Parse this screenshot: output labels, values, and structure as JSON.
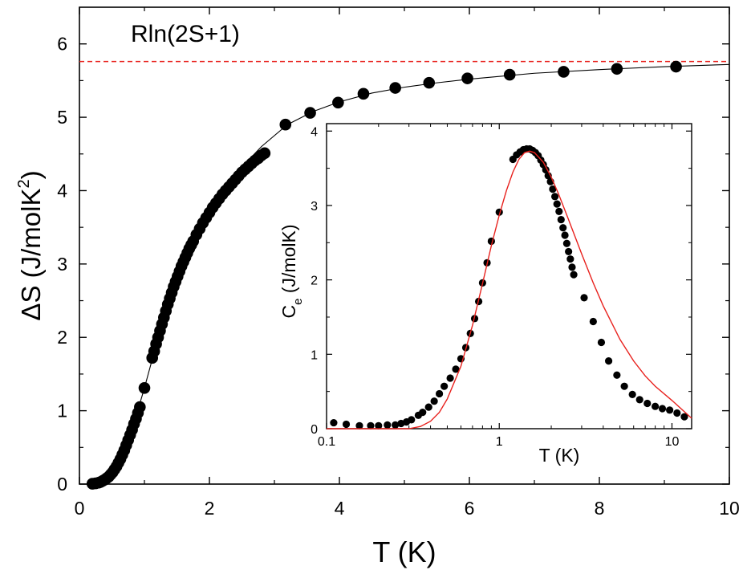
{
  "chart_data": [
    {
      "type": "scatter",
      "xlabel": "T (K)",
      "ylabel_main": "ΔS (J/molK",
      "ylabel_sup": "2",
      "ylabel_close": ")",
      "xlim": [
        0,
        10
      ],
      "ylim": [
        0,
        6.5
      ],
      "x_ticks": [
        0,
        2,
        4,
        6,
        8,
        10
      ],
      "y_ticks": [
        0,
        1,
        2,
        3,
        4,
        5,
        6
      ],
      "reference_line": {
        "label": "Rln(2S+1)",
        "value": 5.76,
        "color": "#e8211d",
        "style": "dashed"
      },
      "series": [
        {
          "marker": "filled-circle",
          "color": "#000000",
          "x": [
            0.2,
            0.25,
            0.3,
            0.33,
            0.36,
            0.39,
            0.42,
            0.45,
            0.48,
            0.51,
            0.54,
            0.57,
            0.6,
            0.63,
            0.66,
            0.69,
            0.72,
            0.75,
            0.78,
            0.81,
            0.84,
            0.87,
            0.9,
            0.93,
            1.0,
            1.12,
            1.15,
            1.18,
            1.21,
            1.24,
            1.27,
            1.3,
            1.33,
            1.36,
            1.39,
            1.42,
            1.45,
            1.48,
            1.51,
            1.54,
            1.57,
            1.6,
            1.63,
            1.66,
            1.69,
            1.72,
            1.75,
            1.8,
            1.85,
            1.9,
            1.95,
            2.0,
            2.05,
            2.1,
            2.15,
            2.2,
            2.25,
            2.3,
            2.35,
            2.4,
            2.45,
            2.5,
            2.55,
            2.6,
            2.65,
            2.7,
            2.75,
            2.8,
            2.85,
            3.17,
            3.55,
            3.98,
            4.37,
            4.86,
            5.38,
            5.97,
            6.62,
            7.45,
            8.27,
            9.18
          ],
          "y": [
            0.005,
            0.01,
            0.02,
            0.03,
            0.045,
            0.06,
            0.08,
            0.1,
            0.13,
            0.16,
            0.2,
            0.24,
            0.29,
            0.34,
            0.4,
            0.46,
            0.53,
            0.6,
            0.67,
            0.74,
            0.82,
            0.89,
            0.97,
            1.05,
            1.31,
            1.72,
            1.81,
            1.91,
            2.0,
            2.09,
            2.18,
            2.27,
            2.36,
            2.45,
            2.53,
            2.61,
            2.69,
            2.76,
            2.83,
            2.9,
            2.97,
            3.03,
            3.09,
            3.15,
            3.21,
            3.26,
            3.31,
            3.4,
            3.48,
            3.56,
            3.63,
            3.7,
            3.77,
            3.83,
            3.89,
            3.95,
            4.0,
            4.05,
            4.1,
            4.15,
            4.2,
            4.25,
            4.29,
            4.33,
            4.37,
            4.41,
            4.44,
            4.48,
            4.51,
            4.9,
            5.06,
            5.2,
            5.32,
            5.4,
            5.47,
            5.53,
            5.58,
            5.62,
            5.66,
            5.69
          ]
        },
        {
          "type": "line",
          "color": "#000000",
          "x": [
            0.2,
            0.4,
            0.6,
            0.8,
            1.0,
            1.2,
            1.4,
            1.6,
            1.8,
            2.0,
            2.4,
            2.8,
            3.2,
            3.6,
            4.0,
            4.5,
            5.0,
            5.5,
            6.0,
            7.0,
            8.0,
            9.0,
            10.0
          ],
          "y": [
            0.005,
            0.07,
            0.29,
            0.71,
            1.31,
            1.96,
            2.53,
            3.01,
            3.42,
            3.72,
            4.23,
            4.6,
            4.9,
            5.08,
            5.21,
            5.33,
            5.41,
            5.47,
            5.52,
            5.6,
            5.65,
            5.69,
            5.72
          ]
        }
      ]
    },
    {
      "type": "scatter",
      "xscale": "log",
      "xlabel": "T (K)",
      "ylabel_main": "C",
      "ylabel_sub": "e",
      "ylabel_rest": " (J/molK)",
      "xlim": [
        0.1,
        13
      ],
      "ylim": [
        0,
        4.1
      ],
      "x_ticks": [
        0.1,
        1,
        10
      ],
      "x_tick_labels": [
        "0.1",
        "1",
        "10"
      ],
      "y_ticks": [
        0,
        1,
        2,
        3,
        4
      ],
      "series": [
        {
          "marker": "filled-circle",
          "color": "#000000",
          "x": [
            0.11,
            0.13,
            0.155,
            0.18,
            0.2,
            0.225,
            0.25,
            0.27,
            0.29,
            0.31,
            0.34,
            0.36,
            0.39,
            0.42,
            0.45,
            0.48,
            0.52,
            0.56,
            0.6,
            0.64,
            0.68,
            0.72,
            0.76,
            0.8,
            0.85,
            0.9,
            1.0,
            1.2,
            1.26,
            1.32,
            1.38,
            1.44,
            1.5,
            1.56,
            1.62,
            1.68,
            1.74,
            1.8,
            1.86,
            1.92,
            1.98,
            2.04,
            2.1,
            2.16,
            2.22,
            2.28,
            2.34,
            2.4,
            2.46,
            2.52,
            2.58,
            2.64,
            2.7,
            3.1,
            3.5,
            3.9,
            4.3,
            4.8,
            5.3,
            5.9,
            6.5,
            7.2,
            8.0,
            8.8,
            9.7,
            10.7,
            11.8
          ],
          "y": [
            0.08,
            0.06,
            0.04,
            0.04,
            0.04,
            0.05,
            0.05,
            0.07,
            0.09,
            0.12,
            0.18,
            0.22,
            0.29,
            0.37,
            0.47,
            0.57,
            0.68,
            0.8,
            0.94,
            1.09,
            1.28,
            1.48,
            1.71,
            1.96,
            2.23,
            2.52,
            2.91,
            3.62,
            3.68,
            3.72,
            3.75,
            3.76,
            3.76,
            3.74,
            3.71,
            3.67,
            3.61,
            3.55,
            3.48,
            3.4,
            3.32,
            3.22,
            3.12,
            3.02,
            2.92,
            2.81,
            2.7,
            2.6,
            2.49,
            2.38,
            2.28,
            2.17,
            2.07,
            1.76,
            1.44,
            1.16,
            0.91,
            0.72,
            0.57,
            0.46,
            0.39,
            0.34,
            0.3,
            0.27,
            0.25,
            0.21,
            0.16
          ]
        },
        {
          "type": "line",
          "color": "#e8211d",
          "x": [
            0.1,
            0.2,
            0.3,
            0.35,
            0.4,
            0.45,
            0.5,
            0.6,
            0.7,
            0.8,
            0.9,
            1.0,
            1.1,
            1.2,
            1.3,
            1.4,
            1.5,
            1.6,
            1.8,
            2.0,
            2.2,
            2.5,
            3.0,
            3.5,
            4.0,
            5.0,
            6.0,
            7.0,
            8.0,
            10.0,
            13.0
          ],
          "y": [
            0.0,
            0.0,
            0.0,
            0.03,
            0.1,
            0.22,
            0.4,
            0.84,
            1.39,
            1.95,
            2.46,
            2.87,
            3.2,
            3.45,
            3.62,
            3.71,
            3.73,
            3.71,
            3.58,
            3.38,
            3.16,
            2.83,
            2.35,
            1.96,
            1.65,
            1.2,
            0.91,
            0.71,
            0.57,
            0.38,
            0.14
          ]
        }
      ]
    }
  ]
}
